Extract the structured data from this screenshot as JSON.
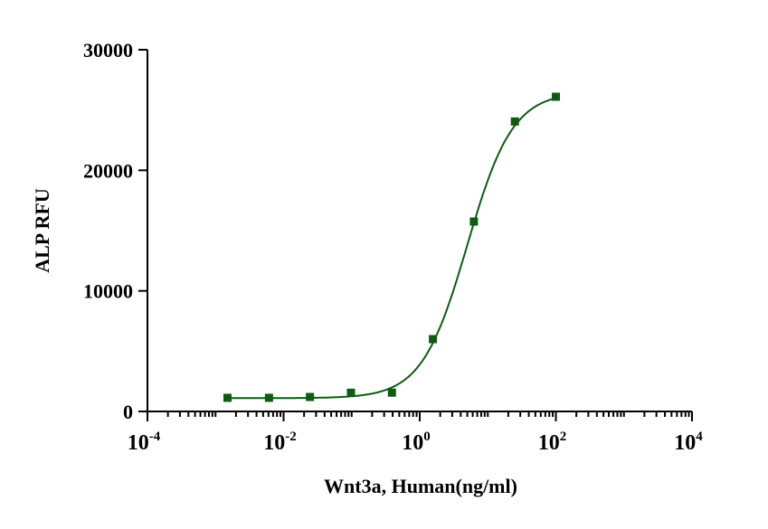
{
  "chart_data": {
    "type": "scatter",
    "title": "",
    "xlabel": "Wnt3a, Human(ng/ml)",
    "ylabel": "ALP RFU",
    "xscale": "log",
    "xlim_exp": [
      -4,
      4
    ],
    "ylim": [
      0,
      30000
    ],
    "x_tick_labels": [
      {
        "base": "10",
        "exp": "-4",
        "value_exp": -4
      },
      {
        "base": "10",
        "exp": "-2",
        "value_exp": -2
      },
      {
        "base": "10",
        "exp": "0",
        "value_exp": 0
      },
      {
        "base": "10",
        "exp": "2",
        "value_exp": 2
      },
      {
        "base": "10",
        "exp": "4",
        "value_exp": 4
      }
    ],
    "y_ticks": [
      0,
      10000,
      20000,
      30000
    ],
    "y_tick_labels": [
      "0",
      "10000",
      "20000",
      "30000"
    ],
    "grid": false,
    "series": [
      {
        "name": "Wnt3a, Human",
        "color": "#0d5c12",
        "x": [
          0.0015,
          0.0061,
          0.0244,
          0.0977,
          0.3906,
          1.5625,
          6.25,
          25,
          100
        ],
        "y": [
          1130,
          1130,
          1200,
          1550,
          1560,
          6000,
          15750,
          24050,
          26100
        ],
        "fit": {
          "model": "4PL",
          "bottom": 1100,
          "top": 26500,
          "ec50": 5,
          "hill": 1.3
        }
      }
    ]
  }
}
